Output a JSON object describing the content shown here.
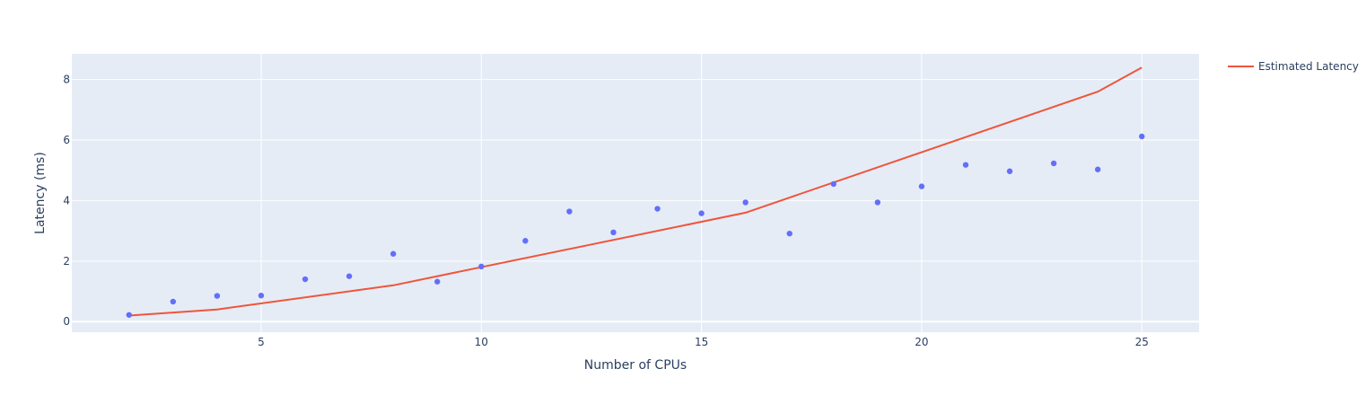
{
  "chart_data": {
    "type": "scatter",
    "xlabel": "Number of CPUs",
    "ylabel": "Latency (ms)",
    "xlim": [
      0.7,
      26.3
    ],
    "ylim": [
      -0.35,
      8.85
    ],
    "x_ticks": [
      5,
      10,
      15,
      20,
      25
    ],
    "y_ticks": [
      0,
      2,
      4,
      6,
      8
    ],
    "grid": true,
    "legend_position": "top-right",
    "colors": {
      "plot_background": "#e5ecf6",
      "grid": "#ffffff",
      "points": "#636efa",
      "line": "#ef553b",
      "text": "#2a3f5f"
    },
    "series": [
      {
        "kind": "markers",
        "x": [
          2,
          3,
          4,
          5,
          6,
          7,
          8,
          9,
          10,
          11,
          12,
          13,
          14,
          15,
          16,
          17,
          18,
          19,
          20,
          21,
          22,
          23,
          24,
          25
        ],
        "y": [
          0.22,
          0.66,
          0.85,
          0.86,
          1.4,
          1.5,
          2.24,
          1.32,
          1.82,
          2.67,
          3.64,
          2.95,
          3.73,
          3.58,
          3.94,
          2.91,
          4.55,
          3.94,
          4.47,
          5.18,
          4.97,
          5.23,
          5.03,
          6.12
        ]
      },
      {
        "kind": "line",
        "name": "Estimated Latency",
        "x": [
          2,
          4,
          8,
          16,
          24,
          25
        ],
        "y": [
          0.2,
          0.4,
          1.2,
          3.6,
          7.6,
          8.4
        ]
      }
    ]
  }
}
